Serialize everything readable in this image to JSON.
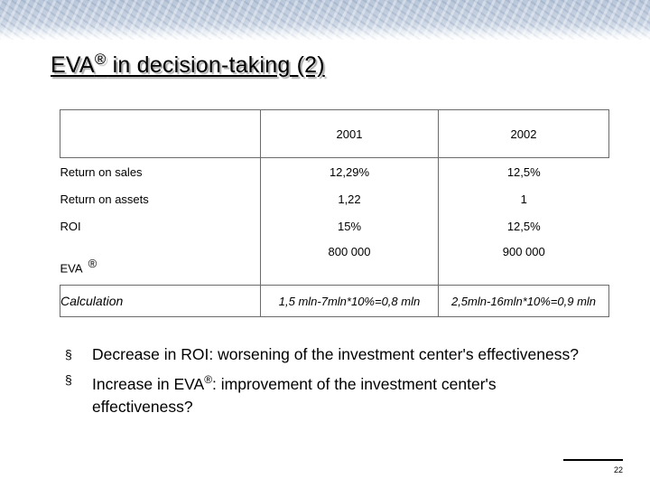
{
  "slide": {
    "title": "EVA",
    "title_mark": "®",
    "title_rest": " in decision-taking (2)",
    "page_number": "22"
  },
  "table": {
    "columns": [
      "",
      "2001",
      "2002"
    ],
    "rows": [
      {
        "label": "Return on sales",
        "v2001": "12,29%",
        "v2002": "12,5%"
      },
      {
        "label": "Return on assets",
        "v2001": "1,22",
        "v2002": "1"
      },
      {
        "label": "ROI",
        "v2001": "15%",
        "v2002": "12,5%"
      },
      {
        "label": "EVA",
        "mark": "®",
        "v2001": "800 000",
        "v2002": "900 000"
      },
      {
        "label": "Calculation",
        "v2001": "1,5 mln-7mln*10%=0,8 mln",
        "v2002": "2,5mln-16mln*10%=0,9 mln"
      }
    ]
  },
  "bullets": [
    {
      "glyph": "§",
      "text": "Decrease in ROI: worsening of the investment center's effectiveness?"
    },
    {
      "glyph": "§",
      "pre": "Increase in EVA",
      "mark": "®",
      "post": ": improvement of the investment center's effectiveness?"
    }
  ]
}
